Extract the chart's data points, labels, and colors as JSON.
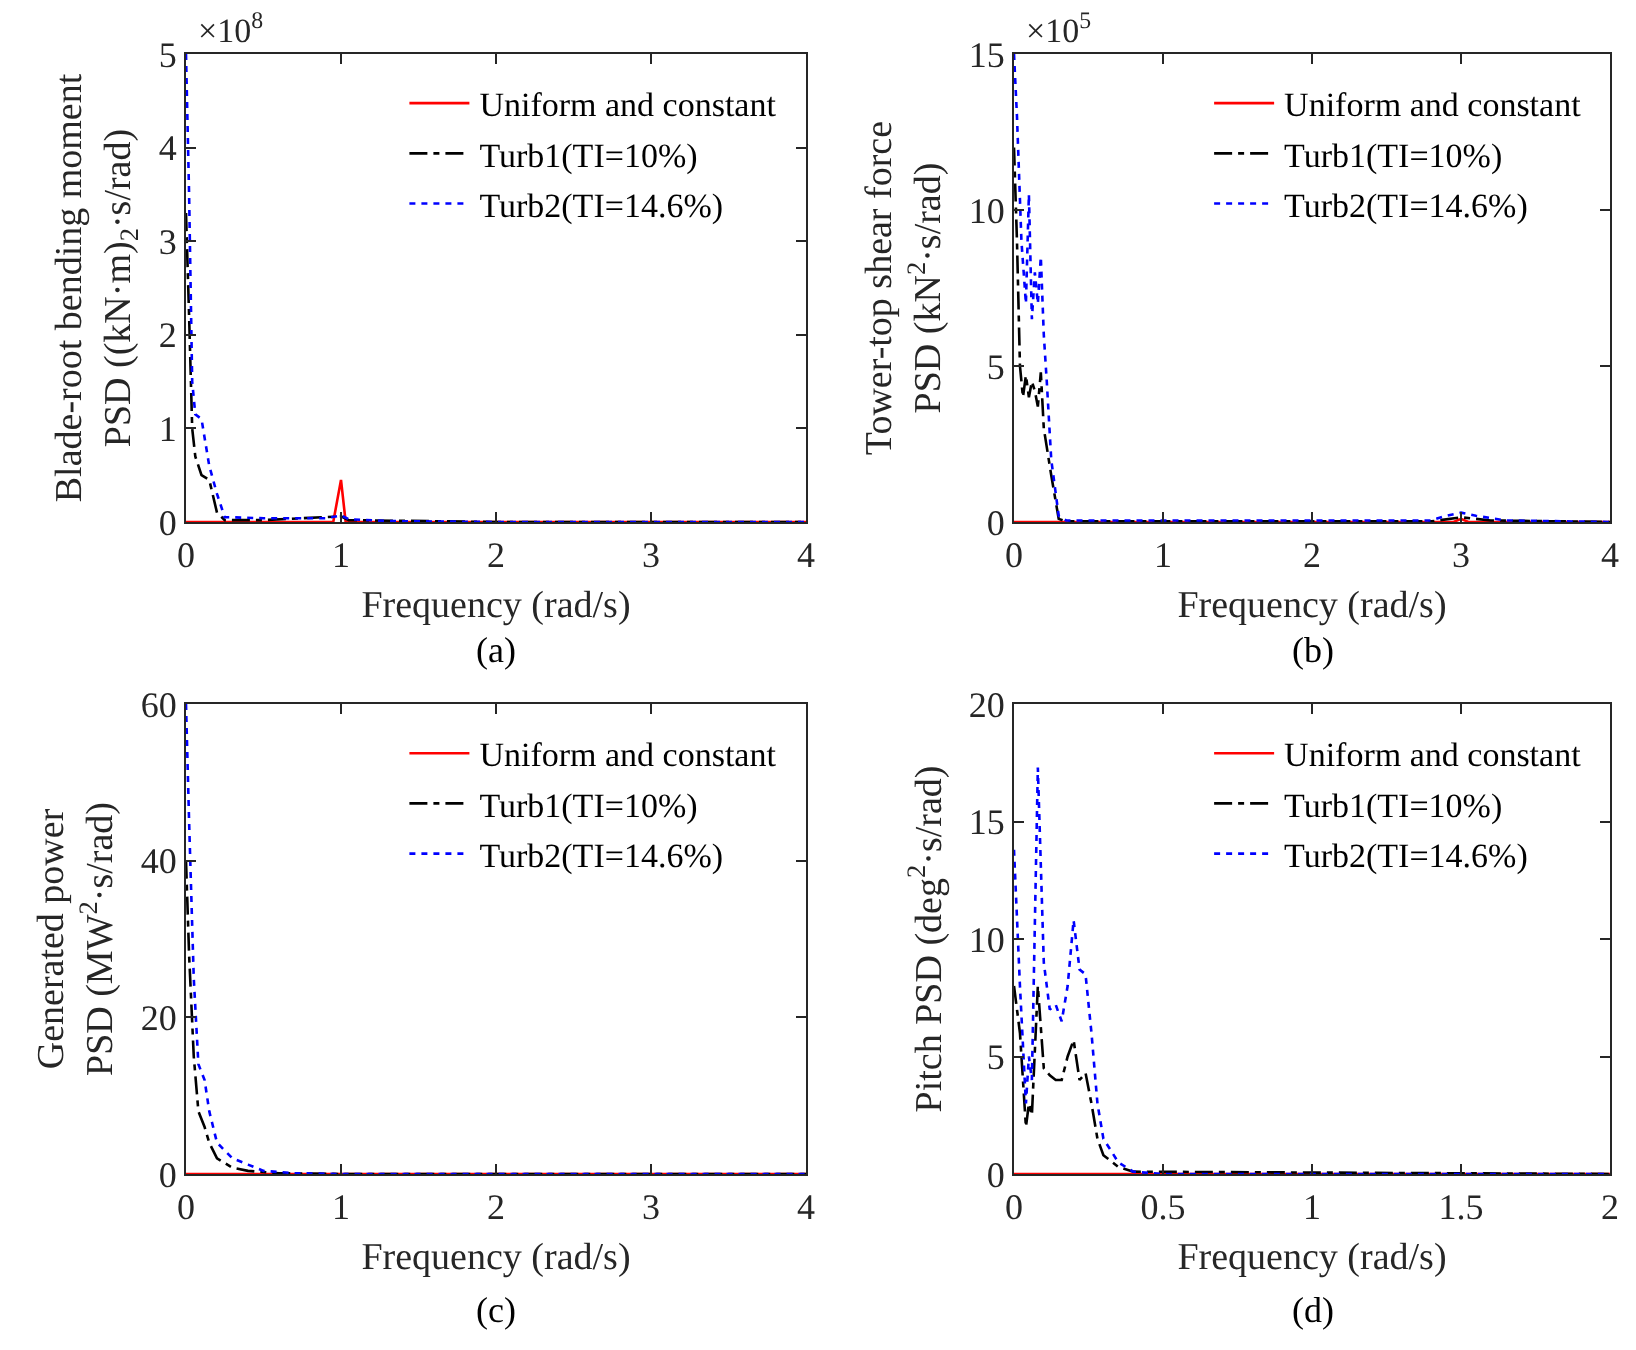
{
  "chart_data": [
    {
      "type": "line",
      "xlabel": "Frequency (rad/s)",
      "ylabel": "Blade-root bending moment\nPSD ((kN·m)$_{2}$·s/rad)",
      "annotations": [
        "×10$^{8}$",
        "(a)"
      ],
      "xlim": [
        0,
        4
      ],
      "xticks": [
        0,
        1,
        2,
        3,
        4
      ],
      "ylim": [
        0,
        5
      ],
      "yticks": [
        0,
        1,
        2,
        3,
        4,
        5
      ],
      "legend": "top right",
      "series": [
        {
          "name": "Uniform and constant",
          "color": "#ff0000",
          "line_style": "solid",
          "x": [
            0,
            0.95,
            1.0,
            1.03,
            4
          ],
          "values": [
            0,
            0,
            0.45,
            0,
            0
          ]
        },
        {
          "name": "Turb1(TI=10%)",
          "color": "#000000",
          "line_style": "dashdot",
          "x": [
            0,
            0.02,
            0.04,
            0.06,
            0.1,
            0.15,
            0.2,
            0.25,
            0.5,
            1.0,
            1.05,
            2,
            4
          ],
          "values": [
            3.3,
            2.2,
            1.0,
            0.7,
            0.5,
            0.45,
            0.1,
            0.02,
            0.02,
            0.06,
            0.02,
            0,
            0
          ]
        },
        {
          "name": "Turb2(TI=14.6%)",
          "color": "#0000ff",
          "line_style": "dotted",
          "x": [
            0,
            0.02,
            0.04,
            0.06,
            0.1,
            0.15,
            0.2,
            0.25,
            0.3,
            0.5,
            0.9,
            1.0,
            1.05,
            1.3,
            2,
            4
          ],
          "values": [
            5,
            3.5,
            1.5,
            1.15,
            1.1,
            0.6,
            0.3,
            0.05,
            0.05,
            0.04,
            0.04,
            0.07,
            0.03,
            0.01,
            0,
            0
          ]
        }
      ]
    },
    {
      "type": "line",
      "xlabel": "Frequency (rad/s)",
      "ylabel": "Tower-top shear force\nPSD (kN$^{2}$·s/rad)",
      "annotations": [
        "×10$^{5}$",
        "(b)"
      ],
      "xlim": [
        0,
        4
      ],
      "xticks": [
        0,
        1,
        2,
        3,
        4
      ],
      "ylim": [
        0,
        15
      ],
      "yticks": [
        0,
        5,
        10,
        15
      ],
      "legend": "top right",
      "series": [
        {
          "name": "Uniform and constant",
          "color": "#ff0000",
          "line_style": "solid",
          "x": [
            0,
            2.95,
            3.0,
            3.05,
            4
          ],
          "values": [
            0,
            0,
            0.1,
            0,
            0
          ]
        },
        {
          "name": "Turb1(TI=10%)",
          "color": "#000000",
          "line_style": "dashdot",
          "x": [
            0,
            0.02,
            0.04,
            0.06,
            0.08,
            0.1,
            0.12,
            0.14,
            0.16,
            0.18,
            0.2,
            0.25,
            0.3,
            0.35,
            2.8,
            3.0,
            3.2,
            4
          ],
          "values": [
            12,
            9,
            5,
            4,
            4.7,
            4,
            4.5,
            4.2,
            3.7,
            4.8,
            3,
            1.5,
            0.1,
            0.02,
            0.02,
            0.15,
            0.05,
            0
          ]
        },
        {
          "name": "Turb2(TI=14.6%)",
          "color": "#0000ff",
          "line_style": "dotted",
          "x": [
            0,
            0.02,
            0.05,
            0.08,
            0.1,
            0.12,
            0.14,
            0.16,
            0.18,
            0.2,
            0.22,
            0.25,
            0.3,
            0.35,
            1,
            2.8,
            2.9,
            3.0,
            3.1,
            3.3,
            4
          ],
          "values": [
            15,
            13,
            9,
            7,
            10.5,
            6.5,
            8,
            7,
            8.5,
            6,
            4.5,
            2,
            0.2,
            0.05,
            0.05,
            0.05,
            0.2,
            0.3,
            0.2,
            0.05,
            0
          ]
        }
      ]
    },
    {
      "type": "line",
      "xlabel": "Frequency (rad/s)",
      "ylabel": "Generated power\nPSD (MW$^{2}$·s/rad)",
      "annotations": [
        "(c)"
      ],
      "xlim": [
        0,
        4
      ],
      "xticks": [
        0,
        1,
        2,
        3,
        4
      ],
      "ylim": [
        0,
        60
      ],
      "yticks": [
        0,
        20,
        40,
        60
      ],
      "legend": "top right",
      "series": [
        {
          "name": "Uniform and constant",
          "color": "#ff0000",
          "line_style": "solid",
          "x": [
            0,
            4
          ],
          "values": [
            0,
            0
          ]
        },
        {
          "name": "Turb1(TI=10%)",
          "color": "#000000",
          "line_style": "dashdot",
          "x": [
            0,
            0.02,
            0.05,
            0.08,
            0.12,
            0.15,
            0.2,
            0.3,
            0.4,
            0.6,
            1,
            4
          ],
          "values": [
            40,
            28,
            15,
            8,
            6,
            4,
            2,
            0.8,
            0.4,
            0.1,
            0,
            0
          ]
        },
        {
          "name": "Turb2(TI=14.6%)",
          "color": "#0000ff",
          "line_style": "dotted",
          "x": [
            0,
            0.02,
            0.05,
            0.08,
            0.12,
            0.15,
            0.2,
            0.3,
            0.4,
            0.5,
            0.7,
            1,
            4
          ],
          "values": [
            60,
            45,
            25,
            14,
            12,
            8,
            4,
            2,
            1.2,
            0.4,
            0.1,
            0,
            0
          ]
        }
      ]
    },
    {
      "type": "line",
      "xlabel": "Frequency (rad/s)",
      "ylabel": "Pitch PSD (deg$^{2}$·s/rad)",
      "annotations": [
        "(d)"
      ],
      "xlim": [
        0,
        2
      ],
      "xticks": [
        0,
        0.5,
        1,
        1.5,
        2
      ],
      "ylim": [
        0,
        20
      ],
      "yticks": [
        0,
        5,
        10,
        15,
        20
      ],
      "legend": "top right",
      "series": [
        {
          "name": "Uniform and constant",
          "color": "#ff0000",
          "line_style": "solid",
          "x": [
            0,
            2
          ],
          "values": [
            0,
            0
          ]
        },
        {
          "name": "Turb1(TI=10%)",
          "color": "#000000",
          "line_style": "dashdot",
          "x": [
            0,
            0.02,
            0.04,
            0.05,
            0.06,
            0.08,
            0.1,
            0.12,
            0.14,
            0.16,
            0.18,
            0.2,
            0.22,
            0.24,
            0.26,
            0.28,
            0.3,
            0.35,
            0.4,
            2
          ],
          "values": [
            8,
            6,
            2,
            3,
            2.5,
            8,
            4.5,
            4.2,
            4,
            4,
            5,
            5.7,
            4,
            4.3,
            3,
            1.5,
            0.8,
            0.3,
            0.1,
            0
          ]
        },
        {
          "name": "Turb2(TI=14.6%)",
          "color": "#0000ff",
          "line_style": "dotted",
          "x": [
            0,
            0.02,
            0.04,
            0.05,
            0.06,
            0.08,
            0.1,
            0.12,
            0.14,
            0.16,
            0.18,
            0.2,
            0.22,
            0.24,
            0.26,
            0.28,
            0.3,
            0.35,
            0.4,
            0.5,
            2
          ],
          "values": [
            13.8,
            8,
            3,
            5,
            4,
            17.3,
            9,
            7,
            7.2,
            6.5,
            8,
            10.8,
            8.7,
            8.5,
            6,
            3,
            1.5,
            0.5,
            0.1,
            0,
            0
          ]
        }
      ]
    }
  ]
}
